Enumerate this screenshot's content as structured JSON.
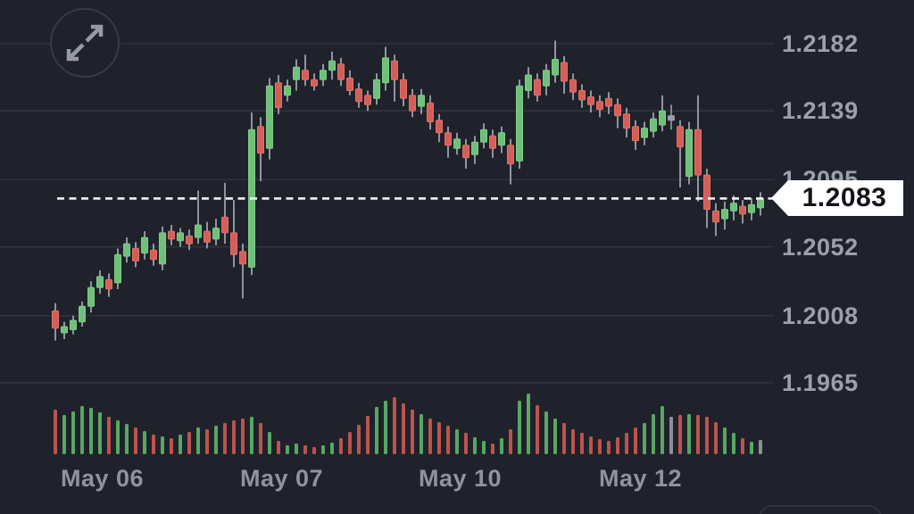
{
  "app": {
    "background": "#1f222b"
  },
  "header": {
    "expand_button": {
      "icon": "expand-arrows-icon"
    }
  },
  "price_tag": {
    "value": "1.2083"
  },
  "chart_data": {
    "type": "candlestick",
    "title": "",
    "current_price": 1.2083,
    "grid": true,
    "y_axis": {
      "side": "right",
      "ylim": [
        1.1965,
        1.2182
      ],
      "ticks": [
        {
          "price": 1.2182,
          "label": "1.2182"
        },
        {
          "price": 1.2139,
          "label": "1.2139"
        },
        {
          "price": 1.2095,
          "label": "1.2095"
        },
        {
          "price": 1.2052,
          "label": "1.2052"
        },
        {
          "price": 1.2008,
          "label": "1.2008"
        },
        {
          "price": 1.1965,
          "label": "1.1965"
        }
      ]
    },
    "x_axis": {
      "labels": [
        {
          "text": "May 06",
          "x": 68
        },
        {
          "text": "May 07",
          "x": 269
        },
        {
          "text": "May 10",
          "x": 469
        },
        {
          "text": "May 12",
          "x": 671
        }
      ]
    },
    "colors": {
      "up": "#6fc079",
      "up_border": "#7fcd88",
      "down": "#d45f58",
      "down_border": "#e27169",
      "neutral": "#979da6",
      "wick": "#adb1b9",
      "grid": "#31353f",
      "axis_text": "#9ba0aa",
      "x_axis_text": "#8e939d",
      "dashed_line": "#f0f2f4",
      "tag_bg": "#ffffff",
      "tag_text": "#121419",
      "volume_up": "#58a763",
      "volume_down": "#bb544e",
      "volume_neutral": "#8b9097"
    },
    "candles": [
      [
        62,
        "r",
        1.2,
        1.2011,
        1.1992,
        1.2016,
        50
      ],
      [
        72,
        "g",
        1.1997,
        1.2001,
        1.1993,
        1.2004,
        44
      ],
      [
        82,
        "g",
        1.1999,
        1.2005,
        1.1996,
        1.2008,
        48
      ],
      [
        92,
        "g",
        1.2004,
        1.2014,
        1.2001,
        1.2017,
        54
      ],
      [
        102,
        "g",
        1.2014,
        1.2026,
        1.201,
        1.203,
        52
      ],
      [
        112,
        "g",
        1.2026,
        1.2033,
        1.2022,
        1.2037,
        47
      ],
      [
        122,
        "r",
        1.2025,
        1.2031,
        1.202,
        1.2035,
        42
      ],
      [
        132,
        "g",
        1.2029,
        1.2047,
        1.2025,
        1.2051,
        38
      ],
      [
        142,
        "g",
        1.2046,
        1.2054,
        1.2042,
        1.2058,
        34
      ],
      [
        152,
        "r",
        1.2043,
        1.2051,
        1.2039,
        1.2055,
        30
      ],
      [
        162,
        "g",
        1.2048,
        1.2058,
        1.2044,
        1.2062,
        26
      ],
      [
        172,
        "r",
        1.2044,
        1.205,
        1.204,
        1.2054,
        22
      ],
      [
        182,
        "g",
        1.2041,
        1.2061,
        1.2037,
        1.2065,
        20
      ],
      [
        192,
        "r",
        1.2057,
        1.2062,
        1.2053,
        1.2066,
        18
      ],
      [
        202,
        "g",
        1.2056,
        1.2061,
        1.2052,
        1.2064,
        22
      ],
      [
        212,
        "r",
        1.2054,
        1.2059,
        1.205,
        1.2063,
        25
      ],
      [
        222,
        "g",
        1.2058,
        1.2066,
        1.2054,
        1.2088,
        30
      ],
      [
        232,
        "r",
        1.2055,
        1.2062,
        1.2051,
        1.2068,
        28
      ],
      [
        242,
        "g",
        1.2057,
        1.2064,
        1.2053,
        1.207,
        32
      ],
      [
        252,
        "r",
        1.2061,
        1.2071,
        1.2054,
        1.2093,
        35
      ],
      [
        262,
        "r",
        1.2047,
        1.2061,
        1.2039,
        1.2082,
        38
      ],
      [
        272,
        "r",
        1.2041,
        1.2049,
        1.2019,
        1.2054,
        40
      ],
      [
        282,
        "g",
        1.2039,
        1.2127,
        1.2034,
        1.2138,
        42
      ],
      [
        292,
        "r",
        1.2112,
        1.2129,
        1.2094,
        1.2135,
        35
      ],
      [
        302,
        "g",
        1.2115,
        1.2155,
        1.2108,
        1.216,
        25
      ],
      [
        312,
        "r",
        1.2141,
        1.2157,
        1.2137,
        1.2162,
        15
      ],
      [
        322,
        "g",
        1.2149,
        1.2155,
        1.2145,
        1.2159,
        10
      ],
      [
        332,
        "g",
        1.2159,
        1.2167,
        1.2152,
        1.2172,
        12
      ],
      [
        342,
        "r",
        1.2159,
        1.2165,
        1.2155,
        1.2175,
        10
      ],
      [
        352,
        "r",
        1.2155,
        1.2159,
        1.2152,
        1.2163,
        8
      ],
      [
        362,
        "g",
        1.2159,
        1.2165,
        1.2155,
        1.2169,
        10
      ],
      [
        372,
        "g",
        1.2165,
        1.2171,
        1.2159,
        1.2177,
        13
      ],
      [
        382,
        "r",
        1.2159,
        1.2169,
        1.2155,
        1.2173,
        18
      ],
      [
        392,
        "r",
        1.2152,
        1.216,
        1.2149,
        1.2165,
        25
      ],
      [
        402,
        "r",
        1.2145,
        1.2153,
        1.2141,
        1.2157,
        33
      ],
      [
        412,
        "r",
        1.2143,
        1.2149,
        1.2139,
        1.2152,
        43
      ],
      [
        422,
        "g",
        1.2147,
        1.2159,
        1.2143,
        1.2163,
        53
      ],
      [
        432,
        "g",
        1.2157,
        1.2173,
        1.2152,
        1.218,
        60
      ],
      [
        442,
        "r",
        1.2159,
        1.2171,
        1.2145,
        1.2175,
        64
      ],
      [
        452,
        "r",
        1.2147,
        1.2159,
        1.2142,
        1.2163,
        57
      ],
      [
        462,
        "r",
        1.2139,
        1.2149,
        1.2135,
        1.2153,
        50
      ],
      [
        472,
        "g",
        1.2142,
        1.2149,
        1.2137,
        1.2153,
        45
      ],
      [
        482,
        "r",
        1.2132,
        1.2144,
        1.2127,
        1.2149,
        40
      ],
      [
        492,
        "r",
        1.2125,
        1.2133,
        1.2119,
        1.2137,
        36
      ],
      [
        502,
        "r",
        1.2117,
        1.2125,
        1.2109,
        1.2129,
        32
      ],
      [
        512,
        "g",
        1.2115,
        1.2121,
        1.2111,
        1.2125,
        28
      ],
      [
        522,
        "r",
        1.2109,
        1.2117,
        1.2102,
        1.2121,
        24
      ],
      [
        532,
        "g",
        1.2111,
        1.2119,
        1.2105,
        1.2123,
        19
      ],
      [
        542,
        "g",
        1.2119,
        1.2127,
        1.2115,
        1.2131,
        15
      ],
      [
        552,
        "r",
        1.2115,
        1.2123,
        1.2109,
        1.2127,
        12
      ],
      [
        562,
        "g",
        1.2117,
        1.2125,
        1.2112,
        1.2129,
        18
      ],
      [
        572,
        "r",
        1.2105,
        1.2117,
        1.2092,
        1.2121,
        28
      ],
      [
        582,
        "g",
        1.2107,
        1.2155,
        1.2102,
        1.2159,
        60
      ],
      [
        592,
        "g",
        1.2152,
        1.2162,
        1.2147,
        1.2167,
        68
      ],
      [
        602,
        "r",
        1.2149,
        1.2159,
        1.2145,
        1.2163,
        55
      ],
      [
        612,
        "g",
        1.2155,
        1.2165,
        1.2149,
        1.2169,
        48
      ],
      [
        622,
        "g",
        1.2162,
        1.2172,
        1.2157,
        1.2184,
        40
      ],
      [
        632,
        "r",
        1.2158,
        1.217,
        1.215,
        1.2174,
        35
      ],
      [
        642,
        "r",
        1.2151,
        1.2159,
        1.2146,
        1.2163,
        28
      ],
      [
        652,
        "r",
        1.2146,
        1.2152,
        1.2141,
        1.2156,
        24
      ],
      [
        662,
        "r",
        1.2143,
        1.2148,
        1.2138,
        1.2152,
        20
      ],
      [
        672,
        "r",
        1.214,
        1.2145,
        1.2135,
        1.2149,
        17
      ],
      [
        682,
        "r",
        1.2142,
        1.2147,
        1.2137,
        1.2151,
        15
      ],
      [
        692,
        "r",
        1.2136,
        1.2143,
        1.2128,
        1.2147,
        19
      ],
      [
        702,
        "r",
        1.2128,
        1.2137,
        1.2122,
        1.2141,
        24
      ],
      [
        712,
        "r",
        1.212,
        1.2129,
        1.2114,
        1.2133,
        30
      ],
      [
        722,
        "g",
        1.2122,
        1.2128,
        1.2117,
        1.2132,
        35
      ],
      [
        732,
        "g",
        1.2126,
        1.2134,
        1.2122,
        1.2138,
        45
      ],
      [
        742,
        "g",
        1.213,
        1.2139,
        1.2126,
        1.2149,
        54
      ],
      [
        752,
        "n",
        1.2133,
        1.2136,
        1.2127,
        1.2143,
        42
      ],
      [
        762,
        "r",
        1.2116,
        1.2129,
        1.209,
        1.2133,
        44
      ],
      [
        772,
        "g",
        1.2097,
        1.2127,
        1.2092,
        1.2132,
        45
      ],
      [
        782,
        "r",
        1.2098,
        1.2127,
        1.2081,
        1.2149,
        44
      ],
      [
        792,
        "r",
        1.2076,
        1.2098,
        1.2064,
        1.2102,
        42
      ],
      [
        802,
        "r",
        1.2068,
        1.2075,
        1.2059,
        1.208,
        36
      ],
      [
        812,
        "g",
        1.207,
        1.2076,
        1.2063,
        1.2081,
        30
      ],
      [
        822,
        "g",
        1.2075,
        1.208,
        1.2069,
        1.2085,
        24
      ],
      [
        832,
        "r",
        1.2073,
        1.2078,
        1.2067,
        1.2082,
        18
      ],
      [
        842,
        "g",
        1.2074,
        1.2079,
        1.2069,
        1.2083,
        14
      ],
      [
        852,
        "g",
        1.2077,
        1.2083,
        1.2072,
        1.2087,
        16,
        "n"
      ]
    ]
  }
}
